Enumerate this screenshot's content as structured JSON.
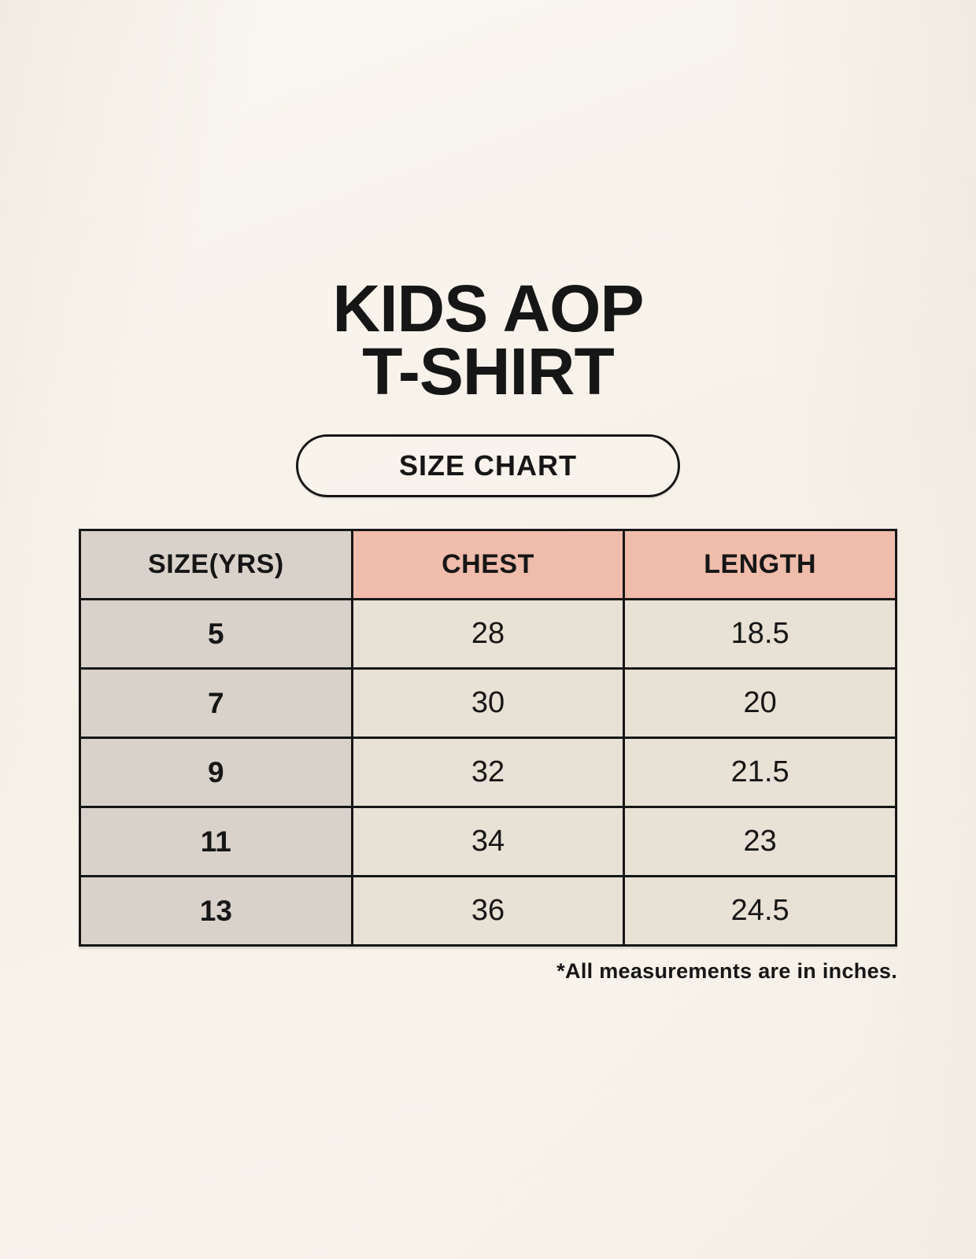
{
  "page": {
    "title_line1": "KIDS AOP",
    "title_line2": "T-SHIRT",
    "badge_label": "SIZE CHART",
    "footnote": "*All measurements are in inches."
  },
  "size_table": {
    "columns": [
      "SIZE(YRS)",
      "CHEST",
      "LENGTH"
    ],
    "rows": [
      {
        "size": "5",
        "chest": "28",
        "length": "18.5"
      },
      {
        "size": "7",
        "chest": "30",
        "length": "20"
      },
      {
        "size": "9",
        "chest": "32",
        "length": "21.5"
      },
      {
        "size": "11",
        "chest": "34",
        "length": "23"
      },
      {
        "size": "13",
        "chest": "36",
        "length": "24.5"
      }
    ],
    "units": "inches"
  },
  "chart_data": {
    "type": "table",
    "title": "KIDS AOP T-SHIRT SIZE CHART",
    "columns": [
      "SIZE(YRS)",
      "CHEST",
      "LENGTH"
    ],
    "rows": [
      [
        "5",
        28,
        18.5
      ],
      [
        "7",
        30,
        20
      ],
      [
        "9",
        32,
        21.5
      ],
      [
        "11",
        34,
        23
      ],
      [
        "13",
        36,
        24.5
      ]
    ],
    "note": "*All measurements are in inches."
  },
  "colors": {
    "background": "#f8f4ec",
    "size_column_bg": "#d9d2cb",
    "header_accent_bg": "#f0bcab",
    "cell_bg": "#e8e1d5",
    "border": "#161616",
    "text": "#161616"
  }
}
